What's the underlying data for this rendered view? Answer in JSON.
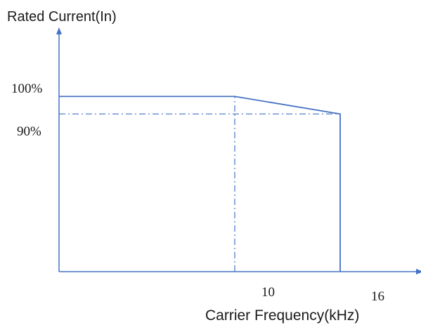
{
  "chart_data": {
    "type": "line",
    "ylabel": "Rated Current(In)",
    "xlabel": "Carrier Frequency(kHz)",
    "y_tick_labels": [
      "100%",
      "90%"
    ],
    "x_tick_labels": [
      "10",
      "16"
    ],
    "series": [
      {
        "x": [
          0,
          10,
          16,
          16
        ],
        "y": [
          100,
          100,
          90,
          0
        ]
      }
    ],
    "reference_lines": [
      {
        "orientation": "horizontal",
        "y": 90,
        "x_from": 0,
        "x_to": 16,
        "style": "dash-dot"
      },
      {
        "orientation": "vertical",
        "x": 10,
        "y_from": 0,
        "y_to": 100,
        "style": "dash-dot"
      }
    ],
    "xlim": [
      0,
      20
    ],
    "ylim": [
      0,
      135
    ],
    "grid": false,
    "color": "#4472c4"
  }
}
